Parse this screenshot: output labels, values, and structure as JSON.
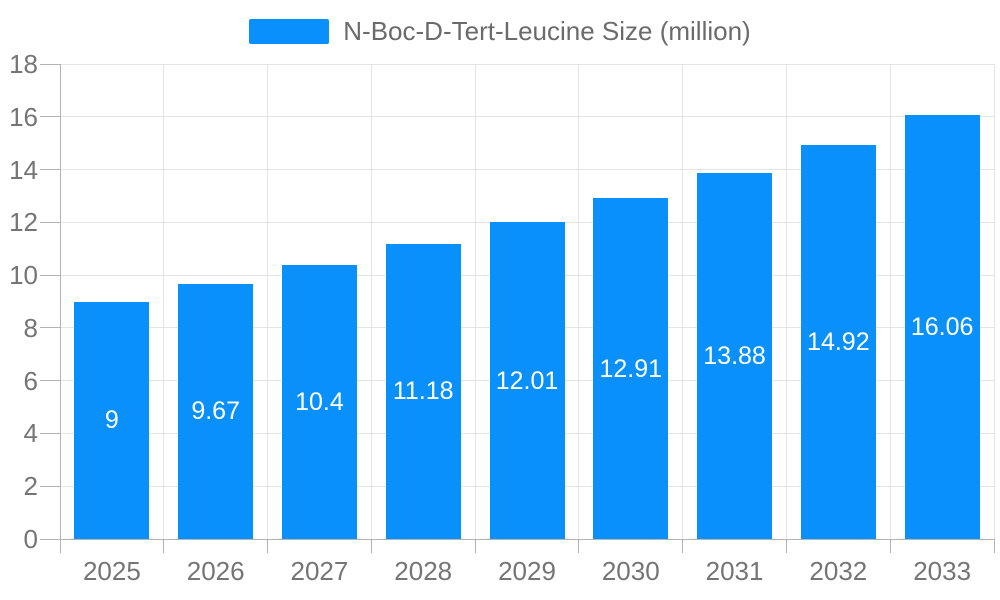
{
  "chart_data": {
    "type": "bar",
    "title": "",
    "categories": [
      "2025",
      "2026",
      "2027",
      "2028",
      "2029",
      "2030",
      "2031",
      "2032",
      "2033"
    ],
    "series": [
      {
        "name": "N-Boc-D-Tert-Leucine Size (million)",
        "values": [
          9,
          9.67,
          10.4,
          11.18,
          12.01,
          12.91,
          13.88,
          14.92,
          16.06
        ]
      }
    ],
    "bar_value_labels": [
      "9",
      "9.67",
      "10.4",
      "11.18",
      "12.01",
      "12.91",
      "13.88",
      "14.92",
      "16.06"
    ],
    "xlabel": "",
    "ylabel": "",
    "ylim": [
      0,
      18
    ],
    "ytick_step": 2,
    "grid": true,
    "legend_position": "top-center",
    "bar_label_position": "inside-center",
    "colors": {
      "bar": "#0a90fa",
      "grid_line": "#e4e4e4",
      "axis_line": "#b3b3b3",
      "tick_label": "#757575",
      "legend_text": "#6b6b6b",
      "bar_label": "#ffffff",
      "background": "#ffffff"
    }
  }
}
